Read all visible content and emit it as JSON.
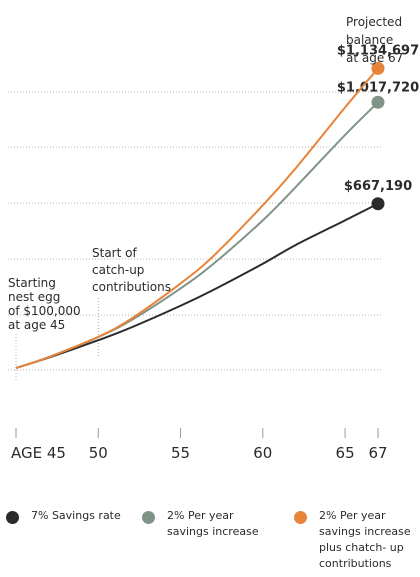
{
  "chart_data": {
    "type": "line",
    "title": "",
    "xlabel": "",
    "ylabel": "",
    "xlim": [
      45,
      67
    ],
    "ylim": [
      0,
      1250000
    ],
    "x_ticks": [
      {
        "value": 45,
        "label": "AGE 45"
      },
      {
        "value": 50,
        "label": "50"
      },
      {
        "value": 55,
        "label": "55"
      },
      {
        "value": 60,
        "label": "60"
      },
      {
        "value": 65,
        "label": "65"
      },
      {
        "value": 67,
        "label": "67"
      }
    ],
    "grid": true,
    "legend_position": "bottom",
    "series": [
      {
        "name": "7% Savings rate",
        "color": "#2b2b2b",
        "x": [
          45,
          47,
          50,
          52,
          55,
          57,
          60,
          62,
          65,
          67
        ],
        "y": [
          100000,
          136000,
          196000,
          240000,
          315000,
          370000,
          460000,
          525000,
          610000,
          667190
        ],
        "end_label": "$667,190"
      },
      {
        "name": "2% Per year savings increase",
        "color": "#7f9487",
        "x": [
          45,
          47,
          50,
          52,
          55,
          57,
          60,
          62,
          65,
          67
        ],
        "y": [
          100000,
          138000,
          207000,
          265000,
          375000,
          460000,
          610000,
          725000,
          905000,
          1017720
        ],
        "end_label": "$1,017,720"
      },
      {
        "name": "2% Per year savings increase plus chatch- up contributions",
        "color": "#e8833a",
        "x": [
          45,
          47,
          50,
          52,
          55,
          57,
          60,
          62,
          65,
          67
        ],
        "y": [
          100000,
          138000,
          208000,
          270000,
          392000,
          487000,
          662000,
          790000,
          1000000,
          1134697
        ],
        "end_label": "$1,134,697"
      }
    ],
    "annotations": {
      "projected": [
        "Projected",
        "balance",
        "at age 67"
      ],
      "catch_up": [
        "Start of",
        "catch-up",
        "contributions"
      ],
      "starting": [
        "Starting",
        "nest egg",
        "of $100,000",
        "at age 45"
      ]
    }
  },
  "legend": [
    {
      "lines": [
        "7% Savings rate"
      ],
      "color": "#2b2b2b"
    },
    {
      "lines": [
        "2% Per year",
        "savings increase"
      ],
      "color": "#7f9487"
    },
    {
      "lines": [
        "2% Per year",
        "savings increase",
        "plus chatch- up",
        "contributions"
      ],
      "color": "#e8833a"
    }
  ]
}
